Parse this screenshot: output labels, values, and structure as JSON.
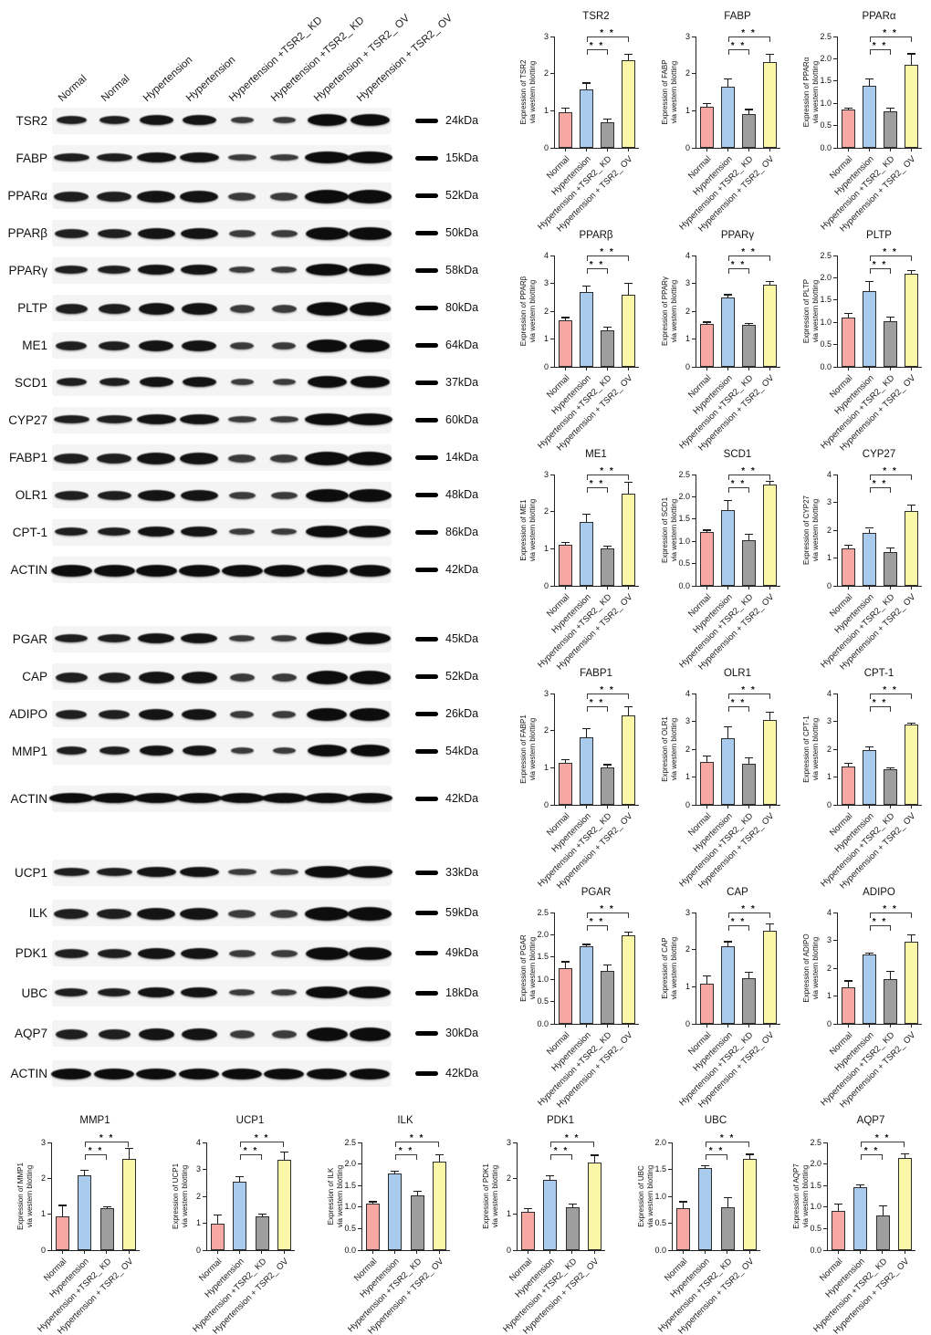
{
  "lanes": {
    "labels": [
      "Normal",
      "Normal",
      "Hypertension",
      "Hypertension",
      "Hypertension +TSR2_ KD",
      "Hypertension +TSR2_ KD",
      "Hypertension + TSR2_ OV",
      "Hypertension + TSR2_ OV"
    ]
  },
  "blot_groups": [
    {
      "rows": [
        {
          "protein": "TSR2",
          "kda": "24kDa"
        },
        {
          "protein": "FABP",
          "kda": "15kDa"
        },
        {
          "protein": "PPARα",
          "kda": "52kDa"
        },
        {
          "protein": "PPARβ",
          "kda": "50kDa"
        },
        {
          "protein": "PPARγ",
          "kda": "58kDa"
        },
        {
          "protein": "PLTP",
          "kda": "80kDa"
        },
        {
          "protein": "ME1",
          "kda": "64kDa"
        },
        {
          "protein": "SCD1",
          "kda": "37kDa"
        },
        {
          "protein": "CYP27",
          "kda": "60kDa"
        },
        {
          "protein": "FABP1",
          "kda": "14kDa"
        },
        {
          "protein": "OLR1",
          "kda": "48kDa"
        },
        {
          "protein": "CPT-1",
          "kda": "86kDa"
        },
        {
          "protein": "ACTIN",
          "kda": "42kDa"
        }
      ]
    },
    {
      "rows": [
        {
          "protein": "PGAR",
          "kda": "45kDa"
        },
        {
          "protein": "CAP",
          "kda": "52kDa"
        },
        {
          "protein": "ADIPO",
          "kda": "26kDa"
        },
        {
          "protein": "MMP1",
          "kda": "54kDa"
        },
        {
          "protein": "ACTIN",
          "kda": "42kDa"
        }
      ]
    },
    {
      "rows": [
        {
          "protein": "UCP1",
          "kda": "33kDa"
        },
        {
          "protein": "ILK",
          "kda": "59kDa"
        },
        {
          "protein": "PDK1",
          "kda": "49kDa"
        },
        {
          "protein": "UBC",
          "kda": "18kDa"
        },
        {
          "protein": "AQP7",
          "kda": "30kDa"
        },
        {
          "protein": "ACTIN",
          "kda": "42kDa"
        }
      ]
    }
  ],
  "chart_layout": {
    "categories": [
      "Normal",
      "Hypertension",
      "Hypertension +TSR2_ KD",
      "Hypertension + TSR2_ OV"
    ],
    "bar_colors": [
      "#F7A8A3",
      "#A9CBEE",
      "#9E9E9E",
      "#FAF8A8"
    ],
    "sig_label": "* *",
    "significance": [
      {
        "from": 1,
        "to": 2
      },
      {
        "from": 1,
        "to": 3
      }
    ],
    "legend": "none",
    "grid": "off"
  },
  "chart_data": [
    {
      "type": "bar",
      "title": "TSR2",
      "ylabel_lines": [
        "Expression of TSR2",
        "via western blotting"
      ],
      "ylim": [
        0,
        3
      ],
      "ytick_labels": [
        "0",
        "1",
        "2",
        "3"
      ],
      "values": [
        0.95,
        1.58,
        0.7,
        2.35
      ],
      "errors": [
        0.1,
        0.15,
        0.06,
        0.15
      ]
    },
    {
      "type": "bar",
      "title": "FABP",
      "ylabel_lines": [
        "Expression of FABP",
        "via western blotting"
      ],
      "ylim": [
        0,
        3
      ],
      "ytick_labels": [
        "0",
        "1",
        "2",
        "3"
      ],
      "values": [
        1.1,
        1.65,
        0.92,
        2.3
      ],
      "errors": [
        0.08,
        0.2,
        0.1,
        0.2
      ]
    },
    {
      "type": "bar",
      "title": "PPARα",
      "ylabel_lines": [
        "Expression of PPARα",
        "via western blotting"
      ],
      "ylim": [
        0,
        2.5
      ],
      "ytick_labels": [
        "0.0",
        "0.5",
        "1.0",
        "1.5",
        "2.0",
        "2.5"
      ],
      "values": [
        0.86,
        1.4,
        0.81,
        1.87
      ],
      "errors": [
        0.02,
        0.14,
        0.07,
        0.23
      ]
    },
    {
      "type": "bar",
      "title": "PPARβ",
      "ylabel_lines": [
        "Expression of PPARβ",
        "via western blotting"
      ],
      "ylim": [
        0,
        4
      ],
      "ytick_labels": [
        "0",
        "1",
        "2",
        "3",
        "4"
      ],
      "values": [
        1.68,
        2.7,
        1.3,
        2.58
      ],
      "errors": [
        0.07,
        0.18,
        0.12,
        0.4
      ]
    },
    {
      "type": "bar",
      "title": "PPARγ",
      "ylabel_lines": [
        "Expression of PPARγ",
        "via western blotting"
      ],
      "ylim": [
        0,
        4
      ],
      "ytick_labels": [
        "0",
        "1",
        "2",
        "3",
        "4"
      ],
      "values": [
        1.55,
        2.5,
        1.5,
        2.95
      ],
      "errors": [
        0.04,
        0.07,
        0.05,
        0.1
      ]
    },
    {
      "type": "bar",
      "title": "PLTP",
      "ylabel_lines": [
        "Expression of PLTP",
        "via western blotting"
      ],
      "ylim": [
        0,
        2.5
      ],
      "ytick_labels": [
        "0.0",
        "0.5",
        "1.0",
        "1.5",
        "2.0",
        "2.5"
      ],
      "values": [
        1.1,
        1.7,
        1.02,
        2.1
      ],
      "errors": [
        0.08,
        0.2,
        0.09,
        0.05
      ]
    },
    {
      "type": "bar",
      "title": "ME1",
      "ylabel_lines": [
        "Expression of ME1",
        "via western blotting"
      ],
      "ylim": [
        0,
        3
      ],
      "ytick_labels": [
        "0",
        "1",
        "2",
        "3"
      ],
      "values": [
        1.1,
        1.72,
        1.0,
        2.48
      ],
      "errors": [
        0.06,
        0.2,
        0.05,
        0.3
      ]
    },
    {
      "type": "bar",
      "title": "SCD1",
      "ylabel_lines": [
        "Expression of SCD1",
        "via western blotting"
      ],
      "ylim": [
        0,
        2.5
      ],
      "ytick_labels": [
        "0.0",
        "0.5",
        "1.0",
        "1.5",
        "2.0",
        "2.5"
      ],
      "values": [
        1.2,
        1.7,
        1.02,
        2.27
      ],
      "errors": [
        0.04,
        0.21,
        0.12,
        0.07
      ]
    },
    {
      "type": "bar",
      "title": "CYP27",
      "ylabel_lines": [
        "Expression of CYP27",
        "via western blotting"
      ],
      "ylim": [
        0,
        4
      ],
      "ytick_labels": [
        "0",
        "1",
        "2",
        "3",
        "4"
      ],
      "values": [
        1.35,
        1.9,
        1.2,
        2.7
      ],
      "errors": [
        0.08,
        0.15,
        0.15,
        0.18
      ]
    },
    {
      "type": "bar",
      "title": "FABP1",
      "ylabel_lines": [
        "Expression of FABP1",
        "via western blotting"
      ],
      "ylim": [
        0,
        3
      ],
      "ytick_labels": [
        "0",
        "1",
        "2",
        "3"
      ],
      "values": [
        1.13,
        1.82,
        1.0,
        2.4
      ],
      "errors": [
        0.07,
        0.22,
        0.07,
        0.23
      ]
    },
    {
      "type": "bar",
      "title": "OLR1",
      "ylabel_lines": [
        "Expression of OLR1",
        "via western blotting"
      ],
      "ylim": [
        0,
        4
      ],
      "ytick_labels": [
        "0",
        "1",
        "2",
        "3",
        "4"
      ],
      "values": [
        1.55,
        2.4,
        1.48,
        3.05
      ],
      "errors": [
        0.18,
        0.38,
        0.18,
        0.25
      ]
    },
    {
      "type": "bar",
      "title": "CPT-1",
      "ylabel_lines": [
        "Expression of CPT-1",
        "via western blotting"
      ],
      "ylim": [
        0,
        4
      ],
      "ytick_labels": [
        "0",
        "1",
        "2",
        "3",
        "4"
      ],
      "values": [
        1.38,
        1.97,
        1.28,
        2.88
      ],
      "errors": [
        0.08,
        0.1,
        0.03,
        0.04
      ]
    },
    {
      "type": "bar",
      "title": "PGAR",
      "ylabel_lines": [
        "Expression of PGAR",
        "via western blotting"
      ],
      "ylim": [
        0,
        2.5
      ],
      "ytick_labels": [
        "0.0",
        "0.5",
        "1.0",
        "1.5",
        "2.0",
        "2.5"
      ],
      "values": [
        1.25,
        1.75,
        1.18,
        1.98
      ],
      "errors": [
        0.13,
        0.02,
        0.13,
        0.06
      ]
    },
    {
      "type": "bar",
      "title": "CAP",
      "ylabel_lines": [
        "Expression of CAP",
        "via western blotting"
      ],
      "ylim": [
        0,
        3
      ],
      "ytick_labels": [
        "0",
        "1",
        "2",
        "3"
      ],
      "values": [
        1.08,
        2.1,
        1.22,
        2.52
      ],
      "errors": [
        0.2,
        0.1,
        0.15,
        0.15
      ]
    },
    {
      "type": "bar",
      "title": "ADIPO",
      "ylabel_lines": [
        "Expression of ADIPO",
        "via western blotting"
      ],
      "ylim": [
        0,
        4
      ],
      "ytick_labels": [
        "0",
        "1",
        "2",
        "3",
        "4"
      ],
      "values": [
        1.32,
        2.48,
        1.6,
        2.95
      ],
      "errors": [
        0.2,
        0.03,
        0.27,
        0.22
      ]
    },
    {
      "type": "bar",
      "title": "MMP1",
      "ylabel_lines": [
        "Expression of MMP1",
        "via western blotting"
      ],
      "ylim": [
        0,
        3
      ],
      "ytick_labels": [
        "0",
        "1",
        "2",
        "3"
      ],
      "values": [
        0.93,
        2.08,
        1.16,
        2.55
      ],
      "errors": [
        0.3,
        0.12,
        0.03,
        0.27
      ]
    },
    {
      "type": "bar",
      "title": "UCP1",
      "ylabel_lines": [
        "Expression of UCP1",
        "via western blotting"
      ],
      "ylim": [
        0,
        4
      ],
      "ytick_labels": [
        "0",
        "1",
        "2",
        "3",
        "4"
      ],
      "values": [
        0.98,
        2.55,
        1.27,
        3.35
      ],
      "errors": [
        0.3,
        0.15,
        0.04,
        0.27
      ]
    },
    {
      "type": "bar",
      "title": "ILK",
      "ylabel_lines": [
        "Expression of ILK",
        "via western blotting"
      ],
      "ylim": [
        0,
        2.5
      ],
      "ytick_labels": [
        "0.0",
        "0.5",
        "1.0",
        "1.5",
        "2.0",
        "2.5"
      ],
      "values": [
        1.08,
        1.78,
        1.27,
        2.06
      ],
      "errors": [
        0.03,
        0.04,
        0.08,
        0.14
      ]
    },
    {
      "type": "bar",
      "title": "PDK1",
      "ylabel_lines": [
        "Expression of PDK1",
        "via western blotting"
      ],
      "ylim": [
        0,
        3
      ],
      "ytick_labels": [
        "0",
        "1",
        "2",
        "3"
      ],
      "values": [
        1.08,
        1.97,
        1.2,
        2.45
      ],
      "errors": [
        0.07,
        0.08,
        0.06,
        0.18
      ]
    },
    {
      "type": "bar",
      "title": "UBC",
      "ylabel_lines": [
        "Expression of UBC",
        "via western blotting"
      ],
      "ylim": [
        0,
        2
      ],
      "ytick_labels": [
        "0.0",
        "0.5",
        "1.0",
        "1.5",
        "2.0"
      ],
      "values": [
        0.78,
        1.53,
        0.79,
        1.7
      ],
      "errors": [
        0.11,
        0.03,
        0.17,
        0.07
      ]
    },
    {
      "type": "bar",
      "title": "AQP7",
      "ylabel_lines": [
        "Expression of AQP7",
        "via western blotting"
      ],
      "ylim": [
        0,
        2.5
      ],
      "ytick_labels": [
        "0.0",
        "0.5",
        "1.0",
        "1.5",
        "2.0",
        "2.5"
      ],
      "values": [
        0.92,
        1.46,
        0.81,
        2.13
      ],
      "errors": [
        0.13,
        0.05,
        0.2,
        0.1
      ]
    }
  ]
}
